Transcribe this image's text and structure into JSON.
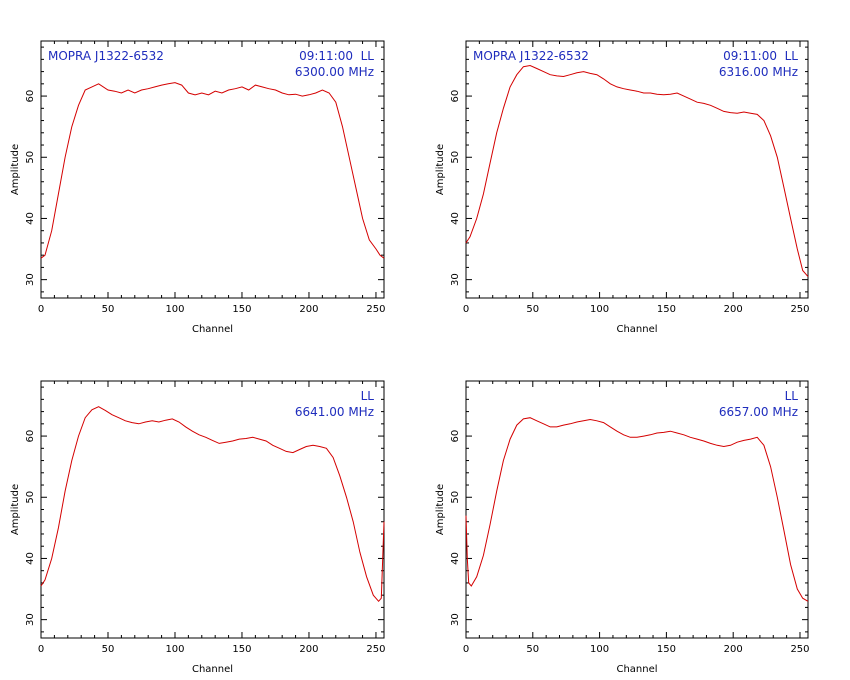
{
  "chart_data": [
    {
      "type": "line",
      "xlabel": "Channel",
      "ylabel": "Amplitude",
      "xlim": [
        0,
        256
      ],
      "ylim": [
        27,
        69
      ],
      "xticks": [
        0,
        50,
        100,
        150,
        200,
        250
      ],
      "yticks": [
        30,
        40,
        50,
        60
      ],
      "annotations": {
        "source": "MOPRA J1322-6532",
        "time_pol": "09:11:00  LL",
        "freq": "6300.00 MHz"
      },
      "series": [
        {
          "x": [
            0,
            3,
            8,
            13,
            18,
            23,
            28,
            33,
            38,
            43,
            50,
            55,
            60,
            65,
            70,
            75,
            80,
            85,
            90,
            95,
            100,
            105,
            110,
            115,
            120,
            125,
            130,
            135,
            140,
            145,
            150,
            155,
            160,
            165,
            170,
            175,
            180,
            185,
            190,
            195,
            200,
            205,
            210,
            215,
            220,
            225,
            230,
            235,
            240,
            245,
            250,
            253,
            256
          ],
          "values": [
            33.5,
            34,
            38,
            44,
            50,
            55,
            58.5,
            61,
            61.5,
            62,
            61,
            60.8,
            60.5,
            61,
            60.5,
            61,
            61.2,
            61.5,
            61.8,
            62,
            62.2,
            61.8,
            60.5,
            60.2,
            60.5,
            60.2,
            60.8,
            60.5,
            61,
            61.2,
            61.5,
            61,
            61.8,
            61.5,
            61.2,
            61,
            60.5,
            60.2,
            60.3,
            60,
            60.2,
            60.5,
            61,
            60.5,
            59,
            55,
            50,
            45,
            40,
            36.5,
            35,
            34,
            33.5
          ]
        }
      ]
    },
    {
      "type": "line",
      "xlabel": "Channel",
      "ylabel": "Amplitude",
      "xlim": [
        0,
        256
      ],
      "ylim": [
        27,
        69
      ],
      "xticks": [
        0,
        50,
        100,
        150,
        200,
        250
      ],
      "yticks": [
        30,
        40,
        50,
        60
      ],
      "annotations": {
        "source": "MOPRA J1322-6532",
        "time_pol": "09:11:00  LL",
        "freq": "6316.00 MHz"
      },
      "series": [
        {
          "x": [
            0,
            3,
            8,
            13,
            18,
            23,
            28,
            33,
            38,
            43,
            48,
            53,
            58,
            63,
            68,
            73,
            78,
            83,
            88,
            93,
            98,
            103,
            108,
            113,
            118,
            123,
            128,
            133,
            138,
            143,
            148,
            153,
            158,
            163,
            168,
            173,
            178,
            183,
            188,
            193,
            198,
            203,
            208,
            213,
            218,
            223,
            228,
            233,
            238,
            243,
            248,
            252,
            256
          ],
          "values": [
            36,
            37,
            40,
            44,
            49,
            54,
            58,
            61.5,
            63.5,
            64.8,
            65,
            64.5,
            64,
            63.5,
            63.3,
            63.2,
            63.5,
            63.8,
            64,
            63.7,
            63.5,
            62.8,
            62,
            61.5,
            61.2,
            61,
            60.8,
            60.5,
            60.5,
            60.3,
            60.2,
            60.3,
            60.5,
            60,
            59.5,
            59,
            58.8,
            58.5,
            58,
            57.5,
            57.3,
            57.2,
            57.4,
            57.2,
            57,
            56,
            53.5,
            50,
            45,
            40,
            35,
            31.5,
            30.5
          ]
        }
      ]
    },
    {
      "type": "line",
      "xlabel": "Channel",
      "ylabel": "Amplitude",
      "xlim": [
        0,
        256
      ],
      "ylim": [
        27,
        69
      ],
      "xticks": [
        0,
        50,
        100,
        150,
        200,
        250
      ],
      "yticks": [
        30,
        40,
        50,
        60
      ],
      "annotations": {
        "source": "",
        "time_pol": "LL",
        "freq": "6641.00 MHz"
      },
      "series": [
        {
          "x": [
            0,
            3,
            8,
            13,
            18,
            23,
            28,
            33,
            38,
            43,
            48,
            53,
            58,
            63,
            68,
            73,
            78,
            83,
            88,
            93,
            98,
            103,
            108,
            113,
            118,
            123,
            128,
            133,
            138,
            143,
            148,
            153,
            158,
            163,
            168,
            173,
            178,
            183,
            188,
            193,
            198,
            203,
            208,
            213,
            218,
            223,
            228,
            233,
            238,
            243,
            248,
            252,
            254,
            255,
            256
          ],
          "values": [
            35.5,
            36.5,
            40,
            45,
            51,
            56,
            60,
            63,
            64.3,
            64.8,
            64.2,
            63.5,
            63,
            62.5,
            62.2,
            62,
            62.3,
            62.5,
            62.3,
            62.6,
            62.8,
            62.3,
            61.5,
            60.8,
            60.2,
            59.8,
            59.3,
            58.8,
            59,
            59.2,
            59.5,
            59.6,
            59.8,
            59.5,
            59.2,
            58.5,
            58,
            57.5,
            57.3,
            57.8,
            58.3,
            58.5,
            58.3,
            58,
            56.5,
            53.5,
            50,
            46,
            41,
            37,
            34,
            33,
            33.5,
            40,
            46
          ]
        }
      ]
    },
    {
      "type": "line",
      "xlabel": "Channel",
      "ylabel": "Amplitude",
      "xlim": [
        0,
        256
      ],
      "ylim": [
        27,
        69
      ],
      "xticks": [
        0,
        50,
        100,
        150,
        200,
        250
      ],
      "yticks": [
        30,
        40,
        50,
        60
      ],
      "annotations": {
        "source": "",
        "time_pol": "LL",
        "freq": "6657.00 MHz"
      },
      "series": [
        {
          "x": [
            0,
            1,
            2,
            4,
            8,
            13,
            18,
            23,
            28,
            33,
            38,
            43,
            48,
            53,
            58,
            63,
            68,
            73,
            78,
            83,
            88,
            93,
            98,
            103,
            108,
            113,
            118,
            123,
            128,
            133,
            138,
            143,
            148,
            153,
            158,
            163,
            168,
            173,
            178,
            183,
            188,
            193,
            198,
            203,
            208,
            213,
            218,
            223,
            228,
            233,
            238,
            243,
            248,
            252,
            256
          ],
          "values": [
            47,
            40,
            36,
            35.5,
            37,
            40.5,
            45.5,
            51,
            56,
            59.5,
            61.8,
            62.8,
            63,
            62.5,
            62,
            61.5,
            61.5,
            61.8,
            62,
            62.3,
            62.5,
            62.7,
            62.5,
            62.2,
            61.5,
            60.8,
            60.2,
            59.8,
            59.8,
            60,
            60.2,
            60.5,
            60.6,
            60.8,
            60.5,
            60.2,
            59.8,
            59.5,
            59.2,
            58.8,
            58.5,
            58.3,
            58.5,
            59,
            59.3,
            59.5,
            59.8,
            58.5,
            55,
            50,
            44.5,
            39,
            35,
            33.5,
            33
          ]
        }
      ]
    }
  ]
}
